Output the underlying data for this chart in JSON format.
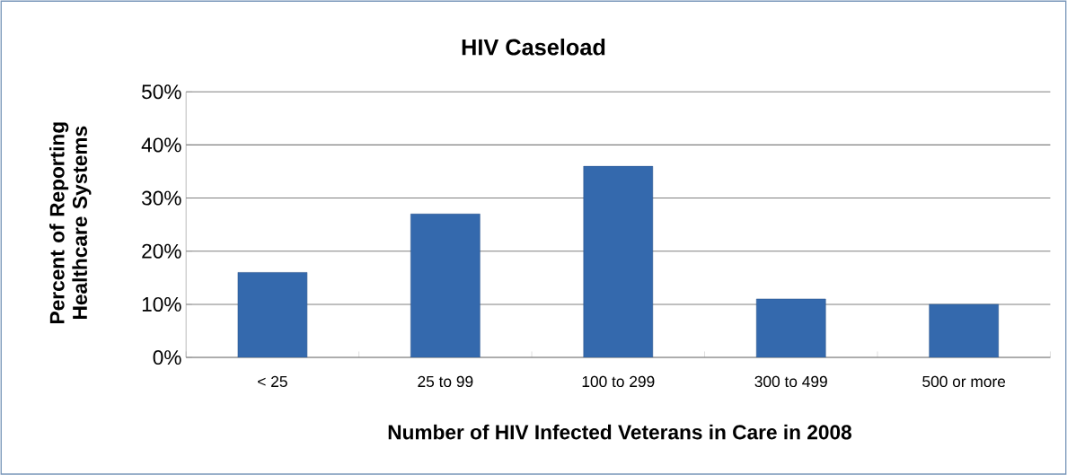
{
  "chart_data": {
    "type": "bar",
    "title": "HIV Caseload",
    "xlabel": "Number of HIV Infected Veterans in Care in 2008",
    "ylabel": "Percent of Reporting Healthcare Systems",
    "categories": [
      "< 25",
      "25 to 99",
      "100 to 299",
      "300 to 499",
      "500 or more"
    ],
    "values": [
      16,
      27,
      36,
      11,
      10
    ],
    "color": "#3469ad",
    "ylim": [
      0,
      50
    ],
    "yticks": [
      {
        "value": 0,
        "label": "0%"
      },
      {
        "value": 10,
        "label": "10%"
      },
      {
        "value": 20,
        "label": "20%"
      },
      {
        "value": 30,
        "label": "30%"
      },
      {
        "value": 40,
        "label": "40%"
      },
      {
        "value": 50,
        "label": "50%"
      }
    ],
    "grid": "y"
  }
}
